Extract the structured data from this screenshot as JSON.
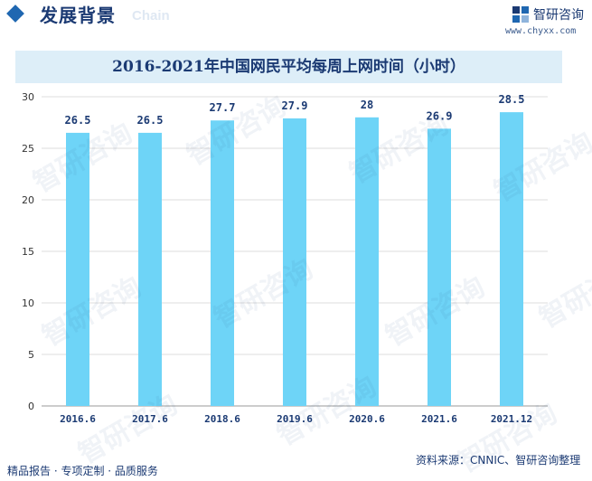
{
  "header": {
    "section_title": "发展背景",
    "section_subtitle": "Chain",
    "logo_text": "智研咨询",
    "logo_url": "www.chyxx.com"
  },
  "chart_data": {
    "type": "bar",
    "title": "2016-2021年中国网民平均每周上网时间（小时）",
    "categories": [
      "2016.6",
      "2017.6",
      "2018.6",
      "2019.6",
      "2020.6",
      "2021.6",
      "2021.12"
    ],
    "values": [
      26.5,
      26.5,
      27.7,
      27.9,
      28,
      26.9,
      28.5
    ],
    "value_labels": [
      "26.5",
      "26.5",
      "27.7",
      "27.9",
      "28",
      "26.9",
      "28.5"
    ],
    "y_ticks": [
      "0",
      "5",
      "10",
      "15",
      "20",
      "25",
      "30"
    ],
    "ylim": [
      0,
      30
    ],
    "grid": true,
    "bar_color": "#6ed4f7",
    "xlabel": "",
    "ylabel": ""
  },
  "footer": {
    "left": "精品报告 · 专项定制 · 品质服务",
    "source": "资料来源：CNNIC、智研咨询整理"
  },
  "watermark": "智研咨询",
  "colors": {
    "accent": "#1f67b1",
    "text": "#1b3a73",
    "title_bg": "#ddeef8",
    "grid": "#dcdcdc"
  }
}
